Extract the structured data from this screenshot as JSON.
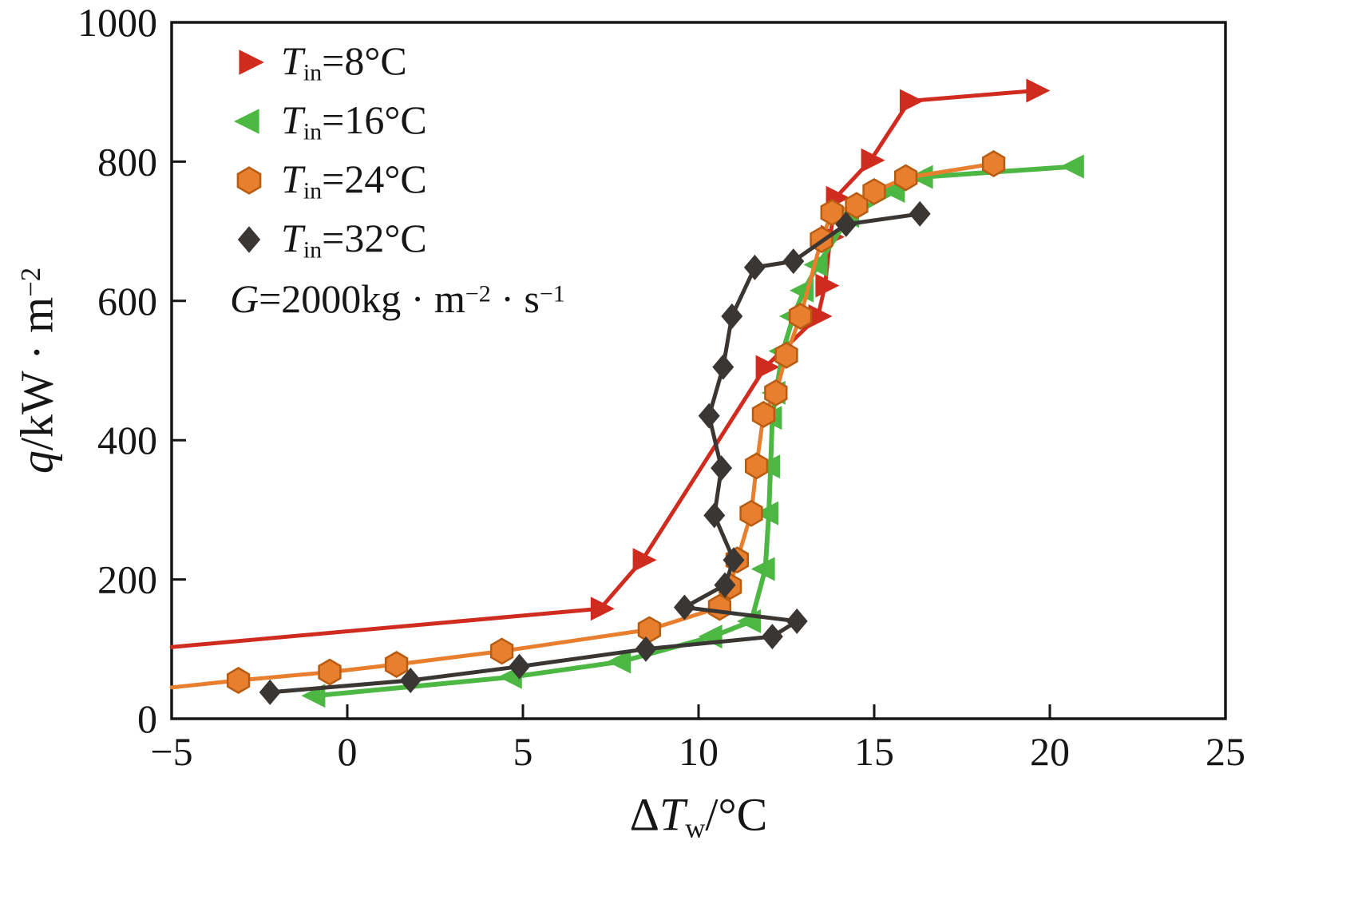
{
  "chart_data": {
    "type": "line",
    "title": "",
    "xlabel": {
      "delta": "Δ",
      "sym": "T",
      "sub": "w",
      "rest": "/°C"
    },
    "ylabel": {
      "sym": "q",
      "rest": "/kW · m",
      "sup": "−2"
    },
    "xlim": [
      -5,
      25
    ],
    "ylim": [
      0,
      1000
    ],
    "grid": false,
    "legend_position": "top-left-inside",
    "xticks": {
      "values": [
        -5,
        0,
        5,
        10,
        15,
        20,
        25
      ],
      "labels": [
        "−5",
        "0",
        "5",
        "10",
        "15",
        "20",
        "25"
      ]
    },
    "yticks": {
      "values": [
        0,
        200,
        400,
        600,
        800,
        1000
      ],
      "labels": [
        "0",
        "200",
        "400",
        "600",
        "800",
        "1000"
      ]
    },
    "annotation": {
      "sym": "G",
      "rest": "=2000kg · m",
      "sup1": "−2",
      "mid": " · s",
      "sup2": "−1"
    },
    "series": [
      {
        "name": "Tin8",
        "legend": {
          "sym": "T",
          "sub": "in",
          "rest": "=8°C"
        },
        "color": "#d02b1f",
        "marker": "triangle-right",
        "line_width": 5,
        "line_prefix": [
          [
            -5,
            103
          ]
        ],
        "points": [
          [
            7.2,
            158
          ],
          [
            8.4,
            228
          ],
          [
            11.9,
            505
          ],
          [
            13.4,
            578
          ],
          [
            13.6,
            622
          ],
          [
            13.75,
            692
          ],
          [
            13.9,
            748
          ],
          [
            14.9,
            802
          ],
          [
            16.0,
            887
          ],
          [
            19.6,
            902
          ]
        ]
      },
      {
        "name": "Tin16",
        "legend": {
          "sym": "T",
          "sub": "in",
          "rest": "=16°C"
        },
        "color": "#4cb743",
        "marker": "triangle-left",
        "line_width": 6,
        "line_prefix": [],
        "points": [
          [
            -0.9,
            33
          ],
          [
            4.7,
            60
          ],
          [
            7.8,
            82
          ],
          [
            10.4,
            118
          ],
          [
            11.5,
            140
          ],
          [
            11.9,
            215
          ],
          [
            12.0,
            295
          ],
          [
            12.05,
            362
          ],
          [
            12.1,
            432
          ],
          [
            12.2,
            468
          ],
          [
            12.4,
            528
          ],
          [
            12.7,
            578
          ],
          [
            13.0,
            615
          ],
          [
            13.4,
            652
          ],
          [
            14.3,
            722
          ],
          [
            15.6,
            758
          ],
          [
            16.4,
            778
          ],
          [
            20.7,
            793
          ]
        ]
      },
      {
        "name": "Tin24",
        "legend": {
          "sym": "T",
          "sub": "in",
          "rest": "=24°C"
        },
        "color": "#e77f2e",
        "marker": "hexagon",
        "marker_stroke": "#b85c12",
        "line_width": 5,
        "line_prefix": [
          [
            -5,
            45
          ]
        ],
        "points": [
          [
            -3.1,
            55
          ],
          [
            -0.5,
            67
          ],
          [
            1.4,
            78
          ],
          [
            4.4,
            97
          ],
          [
            8.6,
            128
          ],
          [
            10.6,
            160
          ],
          [
            10.9,
            190
          ],
          [
            11.1,
            228
          ],
          [
            11.5,
            295
          ],
          [
            11.65,
            363
          ],
          [
            11.85,
            437
          ],
          [
            12.2,
            468
          ],
          [
            12.5,
            522
          ],
          [
            12.9,
            578
          ],
          [
            13.5,
            688
          ],
          [
            13.8,
            727
          ],
          [
            14.5,
            737
          ],
          [
            15.0,
            757
          ],
          [
            15.9,
            777
          ],
          [
            18.4,
            797
          ]
        ]
      },
      {
        "name": "Tin32",
        "legend": {
          "sym": "T",
          "sub": "in",
          "rest": "=32°C"
        },
        "color": "#3a3633",
        "marker": "diamond",
        "line_width": 5,
        "line_prefix": [],
        "points": [
          [
            -2.2,
            38
          ],
          [
            1.8,
            55
          ],
          [
            4.9,
            75
          ],
          [
            8.5,
            100
          ],
          [
            12.1,
            118
          ],
          [
            12.8,
            140
          ],
          [
            9.6,
            160
          ],
          [
            10.75,
            192
          ],
          [
            11.0,
            228
          ],
          [
            10.45,
            292
          ],
          [
            10.65,
            360
          ],
          [
            10.3,
            435
          ],
          [
            10.7,
            505
          ],
          [
            10.95,
            578
          ],
          [
            11.6,
            648
          ],
          [
            12.7,
            657
          ],
          [
            14.2,
            710
          ],
          [
            16.3,
            725
          ]
        ]
      }
    ]
  }
}
